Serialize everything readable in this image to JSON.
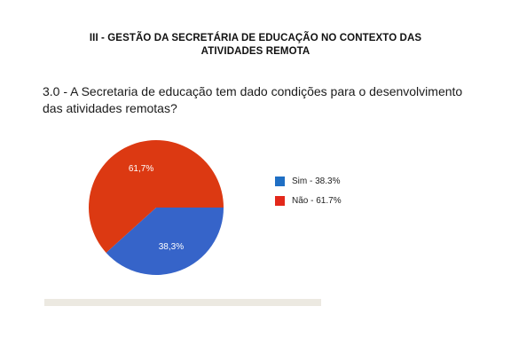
{
  "header": {
    "title_line1": "III - GESTÃO DA SECRETÁRIA DE EDUCAÇÃO NO CONTEXTO DAS",
    "title_line2": "ATIVIDADES REMOTA"
  },
  "question": {
    "line1": "3.0 - A Secretaria de educação tem dado condições para o desenvolvimento",
    "line2": "das atividades remotas?"
  },
  "legend": [
    {
      "label": "Sim - 38.3%",
      "color": "#1f6fc4"
    },
    {
      "label": "Não - 61.7%",
      "color": "#e3281b"
    }
  ],
  "chart_data": {
    "type": "pie",
    "slices": [
      {
        "category": "Sim",
        "value": 38.3,
        "data_label": "38,3%",
        "color": "#3664c9"
      },
      {
        "category": "Não",
        "value": 61.7,
        "data_label": "61,7%",
        "color": "#dc3912"
      }
    ],
    "legend_placement": "right"
  }
}
